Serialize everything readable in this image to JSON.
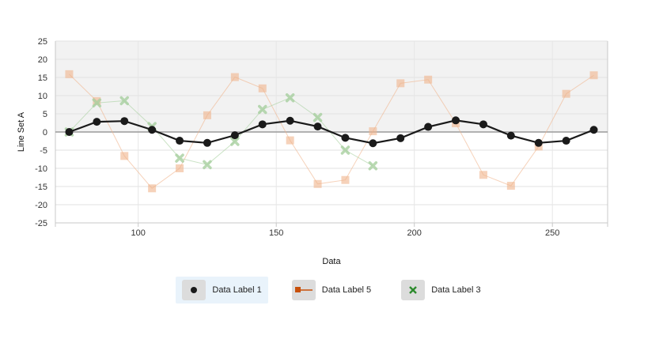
{
  "chart_data": {
    "type": "line",
    "xlabel": "Data",
    "ylabel": "Line Set A",
    "xlim": [
      70,
      270
    ],
    "ylim": [
      -25,
      25
    ],
    "x_ticks": [
      100,
      150,
      200,
      250
    ],
    "y_ticks": [
      25,
      20,
      15,
      10,
      5,
      0,
      -5,
      -10,
      -15,
      -20,
      -25
    ],
    "grid": true,
    "legend_position": "bottom",
    "series": [
      {
        "name": "Data Label 1",
        "color": "#1a1a1a",
        "marker": "circle",
        "points": [
          [
            75,
            0
          ],
          [
            85,
            2.8
          ],
          [
            95,
            3
          ],
          [
            105,
            0.6
          ],
          [
            115,
            -2.4
          ],
          [
            125,
            -3
          ],
          [
            135,
            -0.9
          ],
          [
            145,
            2.1
          ],
          [
            155,
            3.1
          ],
          [
            165,
            1.5
          ],
          [
            175,
            -1.6
          ],
          [
            185,
            -3.1
          ],
          [
            195,
            -1.7
          ],
          [
            205,
            1.4
          ],
          [
            215,
            3.2
          ],
          [
            225,
            2.1
          ],
          [
            235,
            -1
          ],
          [
            245,
            -3
          ],
          [
            255,
            -2.4
          ],
          [
            265,
            0.6
          ]
        ]
      },
      {
        "name": "Data Label 5",
        "color": "#f0b48c",
        "marker": "square",
        "points": [
          [
            75,
            15.9
          ],
          [
            85,
            8.5
          ],
          [
            95,
            -6.6
          ],
          [
            105,
            -15.5
          ],
          [
            115,
            -10
          ],
          [
            125,
            4.6
          ],
          [
            135,
            15.1
          ],
          [
            145,
            12
          ],
          [
            155,
            -2.3
          ],
          [
            165,
            -14.3
          ],
          [
            175,
            -13.2
          ],
          [
            185,
            0.2
          ],
          [
            195,
            13.4
          ],
          [
            205,
            14.4
          ],
          [
            215,
            2.4
          ],
          [
            225,
            -11.8
          ],
          [
            235,
            -14.8
          ],
          [
            245,
            -4
          ],
          [
            255,
            10.5
          ],
          [
            265,
            15.6
          ]
        ]
      },
      {
        "name": "Data Label 3",
        "color": "#a8d0a0",
        "marker": "x",
        "points": [
          [
            75,
            0
          ],
          [
            85,
            8
          ],
          [
            95,
            8.6
          ],
          [
            105,
            1.5
          ],
          [
            115,
            -7.2
          ],
          [
            125,
            -9
          ],
          [
            135,
            -2.6
          ],
          [
            145,
            6.2
          ],
          [
            155,
            9.4
          ],
          [
            165,
            4
          ],
          [
            175,
            -5
          ],
          [
            185,
            -9.3
          ]
        ]
      }
    ]
  },
  "legend": {
    "items": [
      {
        "label": "Data Label 1",
        "icon": "circle-icon",
        "color": "#1a1a1a"
      },
      {
        "label": "Data Label 5",
        "icon": "square-line-icon",
        "color": "#c8500a"
      },
      {
        "label": "Data Label 3",
        "icon": "x-icon",
        "color": "#2e8b2e"
      }
    ]
  }
}
